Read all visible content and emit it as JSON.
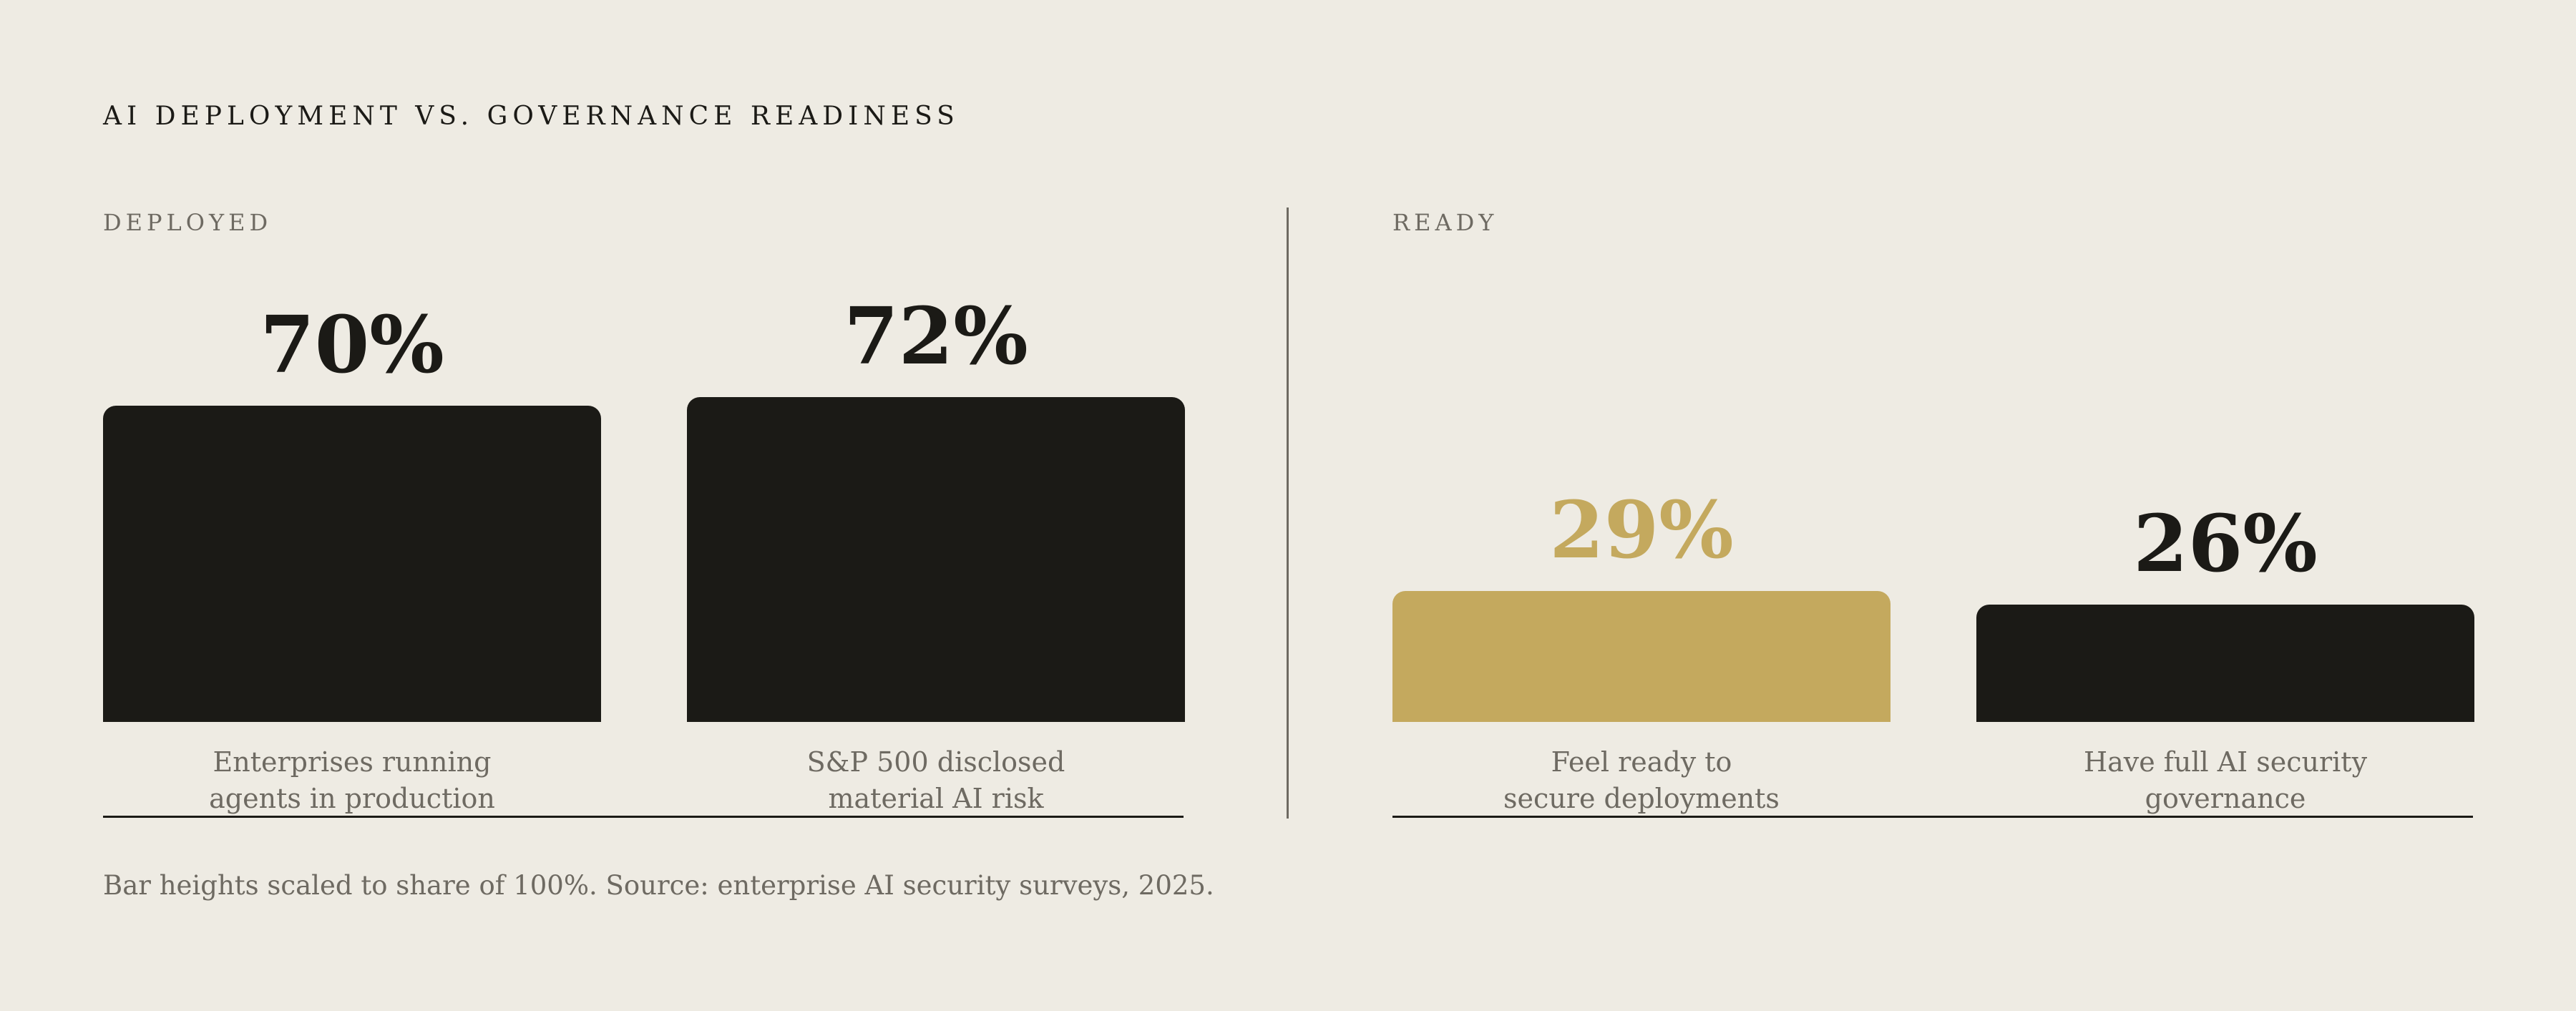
{
  "chart_data": {
    "type": "bar",
    "title": "AI DEPLOYMENT VS. GOVERNANCE READINESS",
    "ylim": [
      0,
      100
    ],
    "groups": [
      {
        "label": "DEPLOYED",
        "bars": [
          {
            "category_lines": [
              "Enterprises running",
              "agents in production"
            ],
            "value": 70,
            "value_label": "70%",
            "color": "#1b1a16"
          },
          {
            "category_lines": [
              "S&P 500 disclosed",
              "material AI risk"
            ],
            "value": 72,
            "value_label": "72%",
            "color": "#1b1a16"
          }
        ]
      },
      {
        "label": "READY",
        "bars": [
          {
            "category_lines": [
              "Feel ready to",
              "secure deployments"
            ],
            "value": 29,
            "value_label": "29%",
            "color": "#c4a95e"
          },
          {
            "category_lines": [
              "Have full AI security",
              "governance"
            ],
            "value": 26,
            "value_label": "26%",
            "color": "#1b1a16"
          }
        ]
      }
    ],
    "note": "Bar heights scaled to share of 100%. Source: enterprise AI security surveys, 2025."
  }
}
